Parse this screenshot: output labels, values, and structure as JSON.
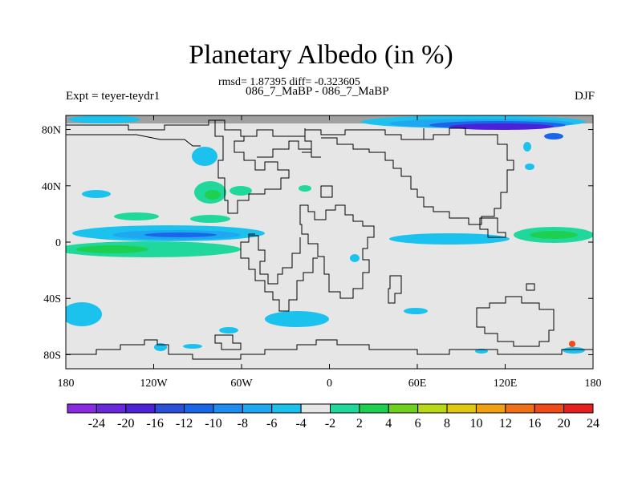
{
  "title": "Planetary Albedo (in %)",
  "stats_line": "rmsd= 1.87395 diff= -0.323605",
  "experiment_names": "086_7_MaBP - 086_7_MaBP",
  "left_label": "Expt = teyer-teydr1",
  "right_label": "DJF",
  "map": {
    "lon_range": [
      -180,
      180
    ],
    "lat_range": [
      -90,
      90
    ],
    "x_ticks": [
      {
        "lon": -180,
        "label": "180"
      },
      {
        "lon": -120,
        "label": "120W"
      },
      {
        "lon": -60,
        "label": "60W"
      },
      {
        "lon": 0,
        "label": "0"
      },
      {
        "lon": 60,
        "label": "60E"
      },
      {
        "lon": 120,
        "label": "120E"
      },
      {
        "lon": 180,
        "label": "180"
      }
    ],
    "y_ticks": [
      {
        "lat": 80,
        "label": "80N"
      },
      {
        "lat": 40,
        "label": "40N"
      },
      {
        "lat": 0,
        "label": "0"
      },
      {
        "lat": -40,
        "label": "40S"
      },
      {
        "lat": -80,
        "label": "80S"
      }
    ],
    "missing_color": "#a0a0a0",
    "neutral_color": "#e6e6e6"
  },
  "colorbar": {
    "colors": [
      "#8a2be2",
      "#6a28dc",
      "#4b22d8",
      "#2a4fd8",
      "#1a66e8",
      "#1e8cf0",
      "#20a7f2",
      "#1cc2ee",
      "#e6e6e6",
      "#20d89c",
      "#1ed050",
      "#70d020",
      "#b8d818",
      "#e0c814",
      "#f0a010",
      "#f07018",
      "#f04a18",
      "#e62020"
    ],
    "labels": [
      "-24",
      "-20",
      "-16",
      "-12",
      "-10",
      "-8",
      "-6",
      "-4",
      "-2",
      "2",
      "4",
      "6",
      "8",
      "10",
      "12",
      "16",
      "20",
      "24"
    ]
  }
}
